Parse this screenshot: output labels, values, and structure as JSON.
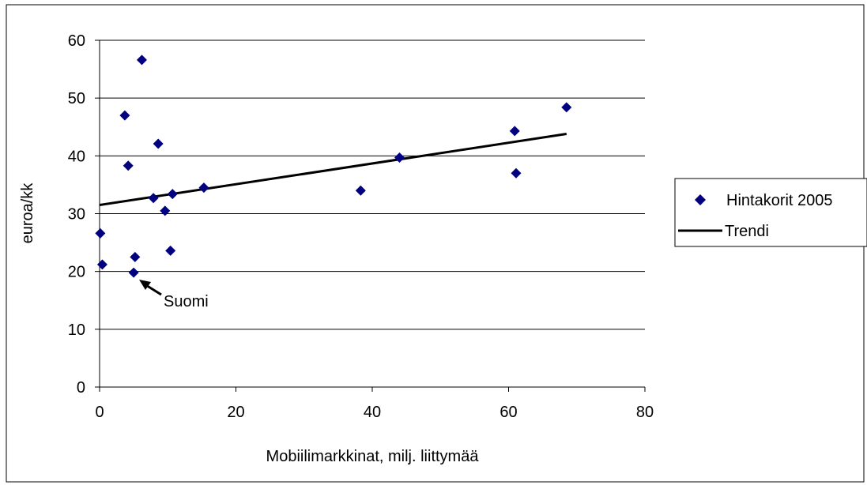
{
  "chart_data": {
    "type": "scatter",
    "xlabel": "Mobiilimarkkinat, milj. liittymää",
    "ylabel": "euroa/kk",
    "xlim": [
      0,
      80
    ],
    "ylim": [
      0,
      60
    ],
    "x_ticks": [
      0,
      20,
      40,
      60,
      80
    ],
    "y_ticks": [
      0,
      10,
      20,
      30,
      40,
      50,
      60
    ],
    "grid": "horizontal",
    "legend_position": "right",
    "series": [
      {
        "name": "Hintakorit 2005",
        "kind": "scatter",
        "marker": "diamond",
        "color": "#000080",
        "points": [
          {
            "x": 0.1,
            "y": 26.6
          },
          {
            "x": 0.4,
            "y": 21.2
          },
          {
            "x": 3.7,
            "y": 47.0
          },
          {
            "x": 4.2,
            "y": 38.3
          },
          {
            "x": 5.0,
            "y": 19.8
          },
          {
            "x": 5.2,
            "y": 22.5
          },
          {
            "x": 6.2,
            "y": 56.6
          },
          {
            "x": 7.9,
            "y": 32.7
          },
          {
            "x": 8.6,
            "y": 42.1
          },
          {
            "x": 9.6,
            "y": 30.5
          },
          {
            "x": 10.4,
            "y": 23.6
          },
          {
            "x": 10.7,
            "y": 33.4
          },
          {
            "x": 15.3,
            "y": 34.5
          },
          {
            "x": 38.3,
            "y": 34.0
          },
          {
            "x": 44.0,
            "y": 39.7
          },
          {
            "x": 60.9,
            "y": 44.3
          },
          {
            "x": 61.1,
            "y": 37.0
          },
          {
            "x": 68.5,
            "y": 48.4
          }
        ]
      },
      {
        "name": "Trendi",
        "kind": "line",
        "color": "#000000",
        "points": [
          {
            "x": 0,
            "y": 31.5
          },
          {
            "x": 68.5,
            "y": 43.8
          }
        ]
      }
    ],
    "annotations": [
      {
        "text": "Suomi",
        "x": 5.0,
        "y": 19.8
      }
    ]
  }
}
